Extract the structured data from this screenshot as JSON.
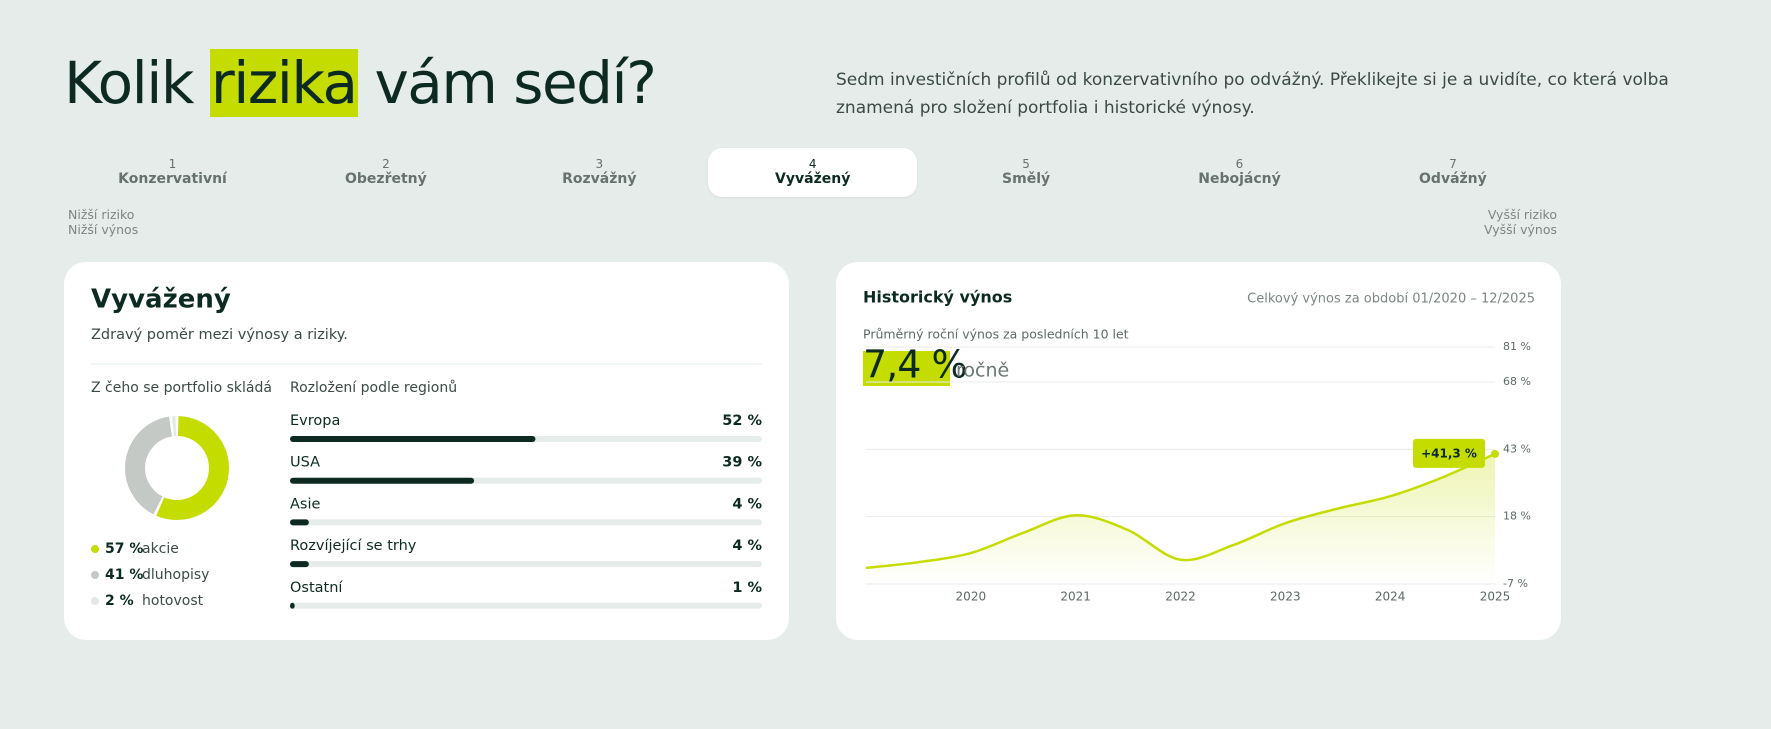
{
  "header": {
    "title_before": "Kolik",
    "title_highlight": "rizika",
    "title_after": "vám sedí?",
    "description": "Sedm investičních profilů od konzervativního po odvážný. Překlikejte si je a uvidíte, co která volba znamená pro složení portfolia i historické výnosy."
  },
  "profiles": {
    "items": [
      {
        "number": 1,
        "name": "Konzervativní"
      },
      {
        "number": 2,
        "name": "Obezřetný"
      },
      {
        "number": 3,
        "name": "Rozvážný"
      },
      {
        "number": 4,
        "name": "Vyvážený"
      },
      {
        "number": 5,
        "name": "Smělý"
      },
      {
        "number": 6,
        "name": "Nebojácný"
      },
      {
        "number": 7,
        "name": "Odvážný"
      }
    ],
    "selected": 3,
    "low_end": [
      "Nižší riziko",
      "Nižší výnos"
    ],
    "high_end": [
      "Vyšší riziko",
      "Vyšší výnos"
    ]
  },
  "profile_card": {
    "title": "Vyvážený",
    "subtitle": "Zdravý poměr mezi výnosy a riziky."
  },
  "return_card": {
    "title": "Historický výnos",
    "period": "Celkový výnos za období 01/2020 – 12/2025",
    "average_label": "Průměrný roční výnos za posledních 10 let",
    "average_value": "7,4 %",
    "average_unit": "ročně"
  },
  "chart_data": [
    {
      "type": "pie",
      "title": "Z čeho se portfolio skládá",
      "categories": [
        "akcie",
        "dluhopisy",
        "hotovost"
      ],
      "values": [
        57,
        41,
        2
      ],
      "value_labels": [
        "57 %",
        "41 %",
        "2 %"
      ],
      "colors": [
        "#c5dc00",
        "#c4c9c5",
        "#e4e8e6"
      ]
    },
    {
      "type": "bar",
      "title": "Rozložení podle regionů",
      "categories": [
        "Evropa",
        "USA",
        "Asie",
        "Rozvíjející se trhy",
        "Ostatní"
      ],
      "values": [
        52,
        39,
        4,
        4,
        1
      ],
      "value_labels": [
        "52 %",
        "39 %",
        "4 %",
        "4 %",
        "1 %"
      ],
      "xlim": [
        0,
        100
      ],
      "color": "#0d2a22"
    },
    {
      "type": "line",
      "x": [
        2019,
        2019.5,
        2020,
        2020.5,
        2021,
        2021.5,
        2022,
        2022.5,
        2023,
        2023.5,
        2024,
        2024.5,
        2025
      ],
      "series": [
        {
          "color": "#c5dc00",
          "values": [
            -1,
            1.1,
            4.5,
            12,
            18.5,
            13,
            2,
            7.4,
            15.6,
            21,
            25.6,
            32.6,
            41.3
          ],
          "value_labels": [
            null,
            null,
            null,
            null,
            null,
            null,
            null,
            null,
            null,
            null,
            null,
            null,
            "+41,3 %"
          ]
        }
      ],
      "xlim": [
        2019,
        2025
      ],
      "xticks": [
        2020,
        2021,
        2022,
        2023,
        2024,
        2025
      ],
      "ylim": [
        -7,
        81
      ],
      "yticks": [
        {
          "value": -7,
          "label": "-7 %"
        },
        {
          "value": 18,
          "label": "18 %"
        },
        {
          "value": 43,
          "label": "43 %"
        },
        {
          "value": 68,
          "label": "68 %"
        },
        {
          "value": 81,
          "label": "81 %"
        }
      ],
      "grid": true
    }
  ]
}
